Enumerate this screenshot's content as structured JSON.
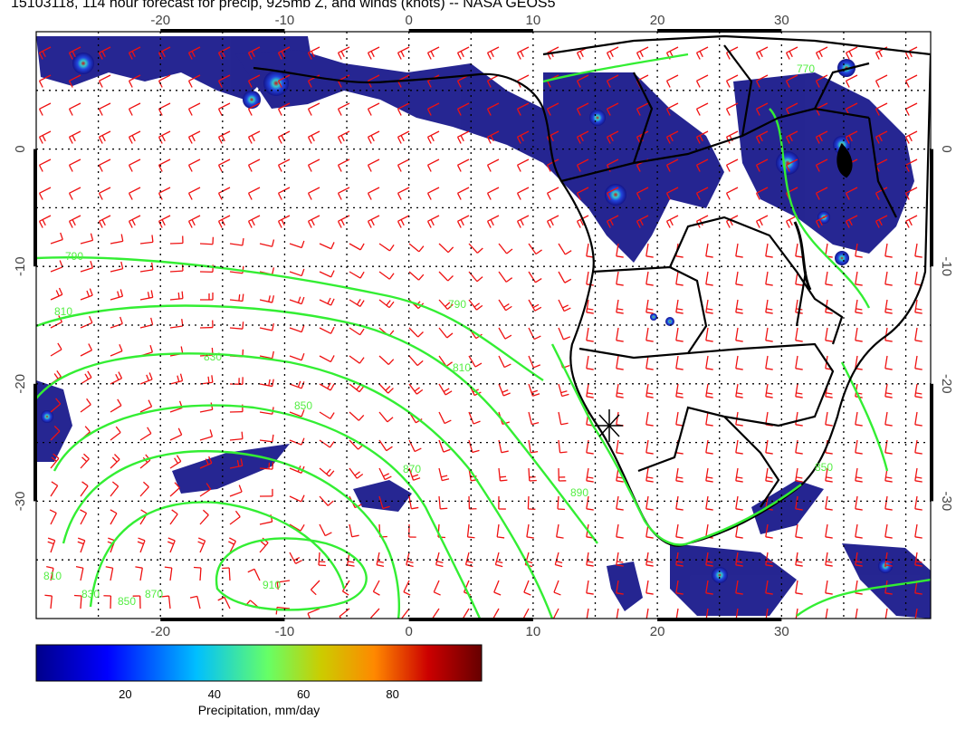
{
  "title": "15103118, 114 hour forecast for precip, 925mb Z, and winds (knots) -- NASA GEOS5",
  "map": {
    "lon_range": [
      -30,
      42
    ],
    "lat_range": [
      -40,
      10
    ],
    "lon_ticks": [
      "-20",
      "-10",
      "0",
      "10",
      "20",
      "30"
    ],
    "lat_ticks": [
      "0",
      "-10",
      "-20",
      "-30"
    ],
    "contour_labels": [
      "790",
      "810",
      "830",
      "850",
      "870",
      "890",
      "910",
      "810",
      "830",
      "850",
      "870",
      "770",
      "790",
      "810",
      "850"
    ],
    "colors": {
      "contour": "#33ee33",
      "barb": "#ee1111",
      "coast": "#000000",
      "precip_low": "#1a1a8c",
      "precip_mid": "#22aacc",
      "precip_high": "#cc1111"
    }
  },
  "colorbar": {
    "title": "Precipitation, mm/day",
    "ticks": [
      "20",
      "40",
      "60",
      "80"
    ],
    "tick_values": [
      20,
      40,
      60,
      80
    ],
    "range": [
      0,
      100
    ],
    "stops": [
      "#00008b",
      "#0000ff",
      "#00bfff",
      "#66ff66",
      "#cccc00",
      "#ff8800",
      "#cc0000",
      "#660000"
    ]
  }
}
